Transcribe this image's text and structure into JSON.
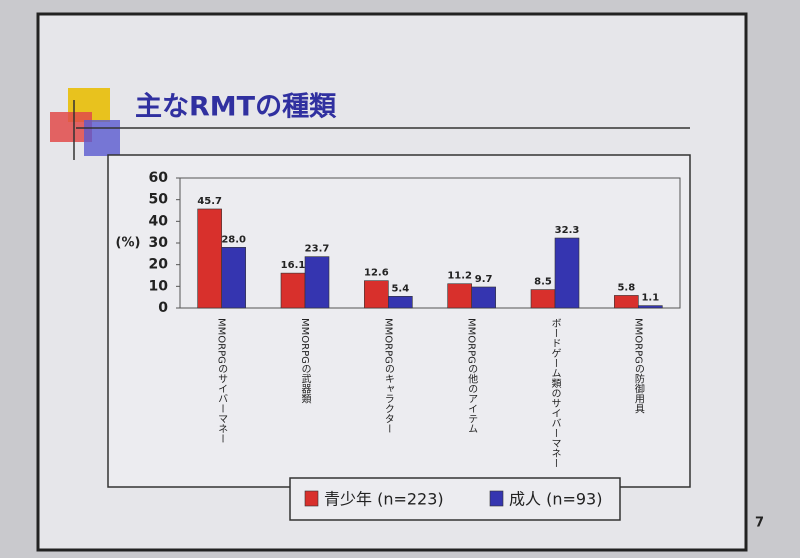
{
  "title": "主なRMTの種類",
  "page_number": "7",
  "chart_data": {
    "type": "bar",
    "y_label": "(%)",
    "categories": [
      "MMORPGのサイバーマネー",
      "MMORPGの武器類",
      "MMORPGのキャラクター",
      "MMORPGの他のアイテム",
      "ボードゲーム類のサイバーマネー",
      "MMORPGの防御用具"
    ],
    "series": [
      {
        "name": "青少年 (n=223)",
        "color": "#d8302c",
        "values": [
          45.7,
          16.1,
          12.6,
          11.2,
          8.5,
          5.8
        ]
      },
      {
        "name": "成人 (n=93)",
        "color": "#3535b0",
        "values": [
          28.0,
          23.7,
          5.4,
          9.7,
          32.3,
          1.1
        ],
        "value_labels": [
          "28.0",
          "23.7",
          "5.4",
          "9.7",
          "32.3",
          "1.1"
        ]
      }
    ],
    "ylim": [
      0,
      60
    ],
    "yticks": [
      0,
      10,
      20,
      30,
      40,
      50,
      60
    ],
    "grid": false,
    "legend": "bottom"
  }
}
